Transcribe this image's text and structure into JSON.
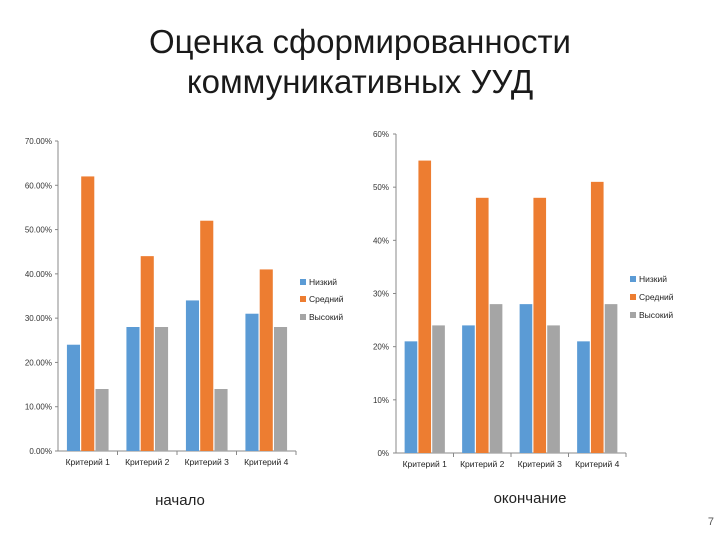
{
  "title_line1": "Оценка сформированности",
  "title_line2": "коммуникативных УУД",
  "colors": {
    "low": "#5b9bd5",
    "mid": "#ed7d31",
    "high": "#a5a5a5"
  },
  "chart_data": [
    {
      "type": "bar",
      "categories": [
        "Критерий 1",
        "Критерий 2",
        "Критерий 3",
        "Критерий 4"
      ],
      "series": [
        {
          "name": "Низкий",
          "values": [
            0.24,
            0.28,
            0.34,
            0.31
          ]
        },
        {
          "name": "Средний",
          "values": [
            0.62,
            0.44,
            0.52,
            0.41
          ]
        },
        {
          "name": "Высокий",
          "values": [
            0.14,
            0.28,
            0.14,
            0.28
          ]
        }
      ],
      "ylim": [
        0,
        0.7
      ],
      "yticks": [
        "0.00%",
        "10.00%",
        "20.00%",
        "30.00%",
        "40.00%",
        "50.00%",
        "60.00%",
        "70.00%"
      ],
      "legend": "right",
      "caption": "начало"
    },
    {
      "type": "bar",
      "categories": [
        "Критерий 1",
        "Критерий 2",
        "Критерий 3",
        "Критерий 4"
      ],
      "series": [
        {
          "name": "Низкий",
          "values": [
            0.21,
            0.24,
            0.28,
            0.21
          ]
        },
        {
          "name": "Средний",
          "values": [
            0.55,
            0.48,
            0.48,
            0.51
          ]
        },
        {
          "name": "Высокий",
          "values": [
            0.24,
            0.28,
            0.24,
            0.28
          ]
        }
      ],
      "ylim": [
        0,
        0.6
      ],
      "yticks": [
        "0%",
        "10%",
        "20%",
        "30%",
        "40%",
        "50%",
        "60%"
      ],
      "legend": "right",
      "caption": "окончание"
    }
  ],
  "slide_number": "7"
}
